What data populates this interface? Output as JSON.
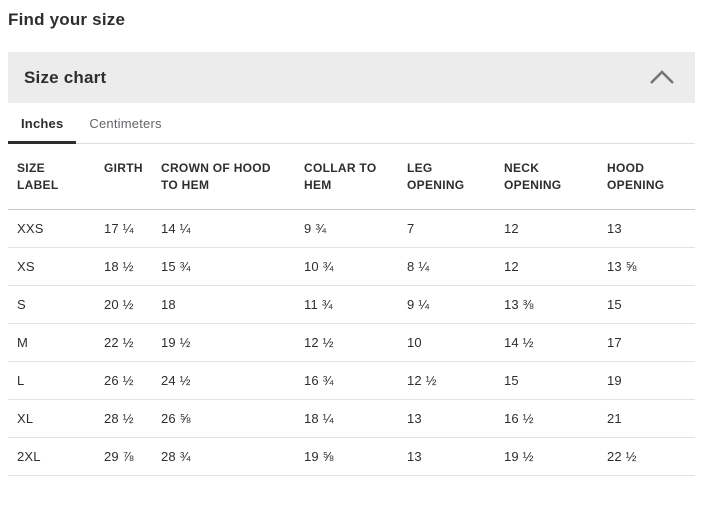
{
  "page": {
    "title": "Find your size"
  },
  "panel": {
    "title": "Size chart",
    "collapse_icon": "chevron-up-icon",
    "state": "expanded"
  },
  "tabs": [
    {
      "label": "Inches",
      "active": true
    },
    {
      "label": "Centimeters",
      "active": false
    }
  ],
  "table": {
    "columns": [
      "SIZE LABEL",
      "GIRTH",
      "CROWN OF HOOD TO HEM",
      "COLLAR TO HEM",
      "LEG OPENING",
      "NECK OPENING",
      "HOOD OPENING"
    ],
    "rows": [
      [
        "XXS",
        "17 ¼",
        "14 ¼",
        "9 ¾",
        "7",
        "12",
        "13"
      ],
      [
        "XS",
        "18 ½",
        "15 ¾",
        "10 ¾",
        "8 ¼",
        "12",
        "13 ⅝"
      ],
      [
        "S",
        "20 ½",
        "18",
        "11 ¾",
        "9 ¼",
        "13 ⅜",
        "15"
      ],
      [
        "M",
        "22 ½",
        "19 ½",
        "12 ½",
        "10",
        "14 ½",
        "17"
      ],
      [
        "L",
        "26 ½",
        "24 ½",
        "16 ¾",
        "12 ½",
        "15",
        "19"
      ],
      [
        "XL",
        "28 ½",
        "26 ⅝",
        "18 ¼",
        "13",
        "16 ½",
        "21"
      ],
      [
        "2XL",
        "29 ⅞",
        "28 ¾",
        "19 ⅝",
        "13",
        "19 ½",
        "22 ½"
      ]
    ]
  },
  "colors": {
    "text": "#2e2e2e",
    "muted_text": "#63666a",
    "panel_background": "#ececec",
    "row_border": "#e3e3e3",
    "header_border": "#c9c9c9",
    "active_tab_underline": "#2e2e2e",
    "chevron": "#767676"
  }
}
